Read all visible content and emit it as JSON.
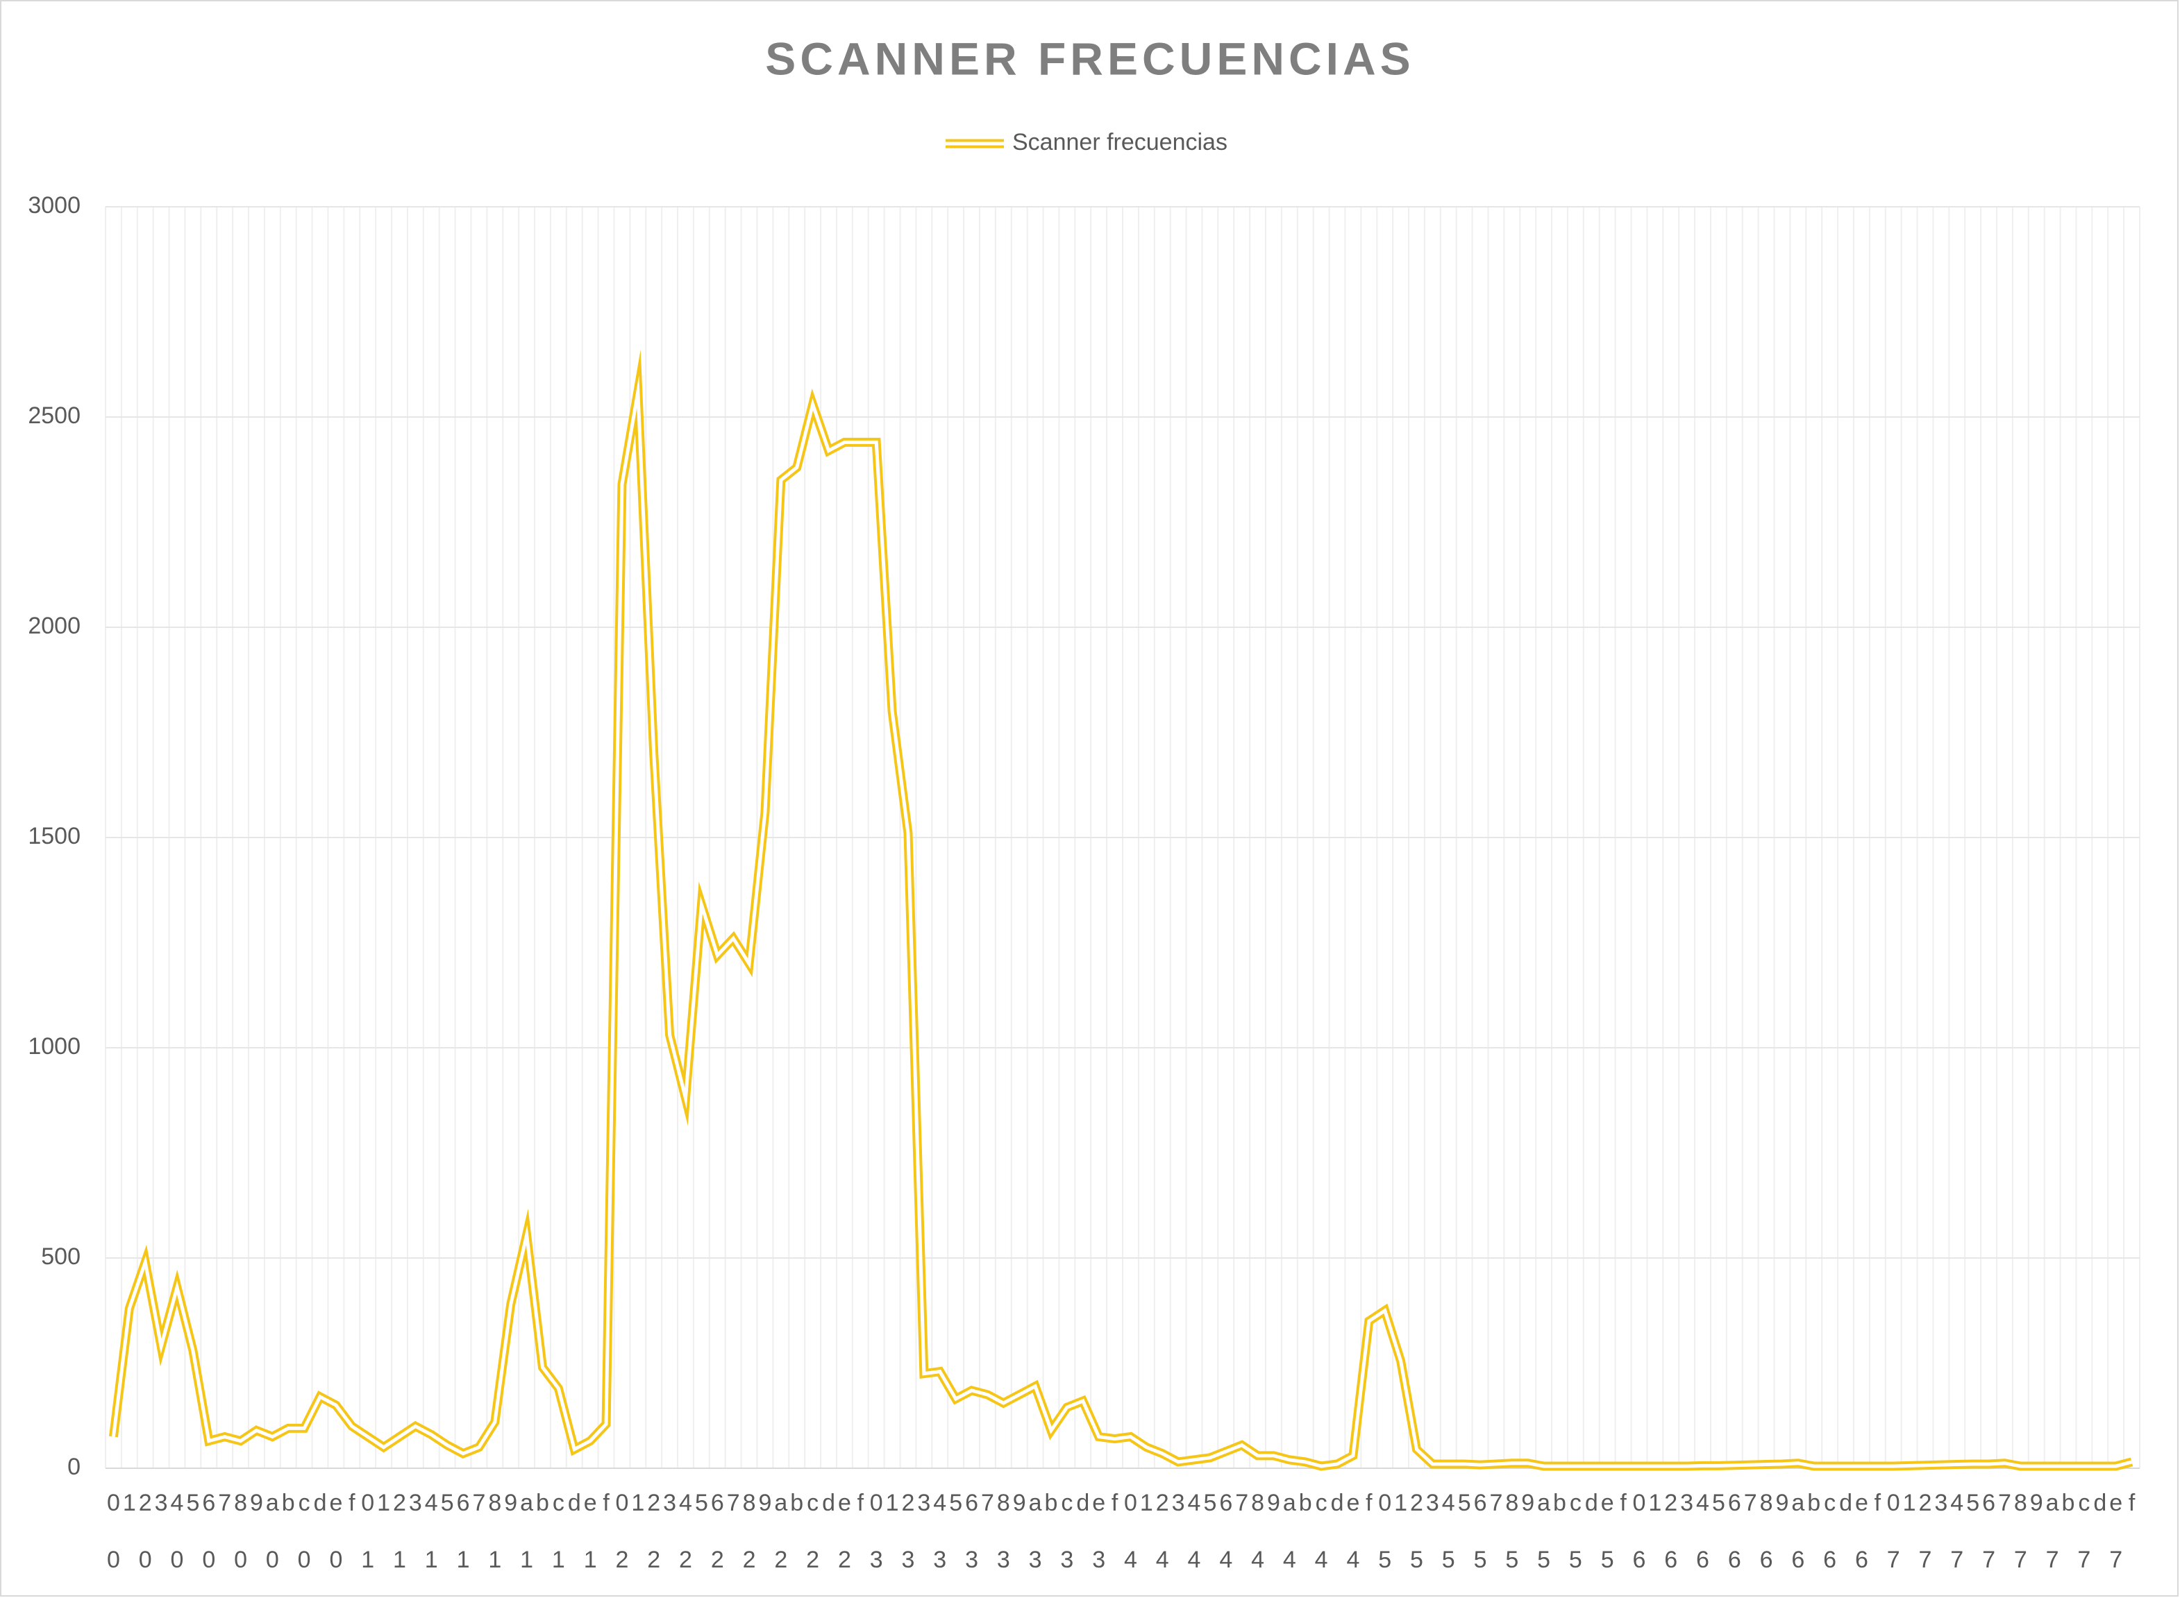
{
  "chart_data": {
    "type": "line",
    "title": "SCANNER FRECUENCIAS",
    "categories": [
      "0",
      "1",
      "2",
      "3",
      "4",
      "5",
      "6",
      "7",
      "8",
      "9",
      "a",
      "b",
      "c",
      "d",
      "e",
      "f",
      "0",
      "1",
      "2",
      "3",
      "4",
      "5",
      "6",
      "7",
      "8",
      "9",
      "a",
      "b",
      "c",
      "d",
      "e",
      "f",
      "0",
      "1",
      "2",
      "3",
      "4",
      "5",
      "6",
      "7",
      "8",
      "9",
      "a",
      "b",
      "c",
      "d",
      "e",
      "f",
      "0",
      "1",
      "2",
      "3",
      "4",
      "5",
      "6",
      "7",
      "8",
      "9",
      "a",
      "b",
      "c",
      "d",
      "e",
      "f",
      "0",
      "1",
      "2",
      "3",
      "4",
      "5",
      "6",
      "7",
      "8",
      "9",
      "a",
      "b",
      "c",
      "d",
      "e",
      "f",
      "0",
      "1",
      "2",
      "3",
      "4",
      "5",
      "6",
      "7",
      "8",
      "9",
      "a",
      "b",
      "c",
      "d",
      "e",
      "f",
      "0",
      "1",
      "2",
      "3",
      "4",
      "5",
      "6",
      "7",
      "8",
      "9",
      "a",
      "b",
      "c",
      "d",
      "e",
      "f",
      "0",
      "1",
      "2",
      "3",
      "4",
      "5",
      "6",
      "7",
      "8",
      "9",
      "a",
      "b",
      "c",
      "d",
      "e",
      "f"
    ],
    "category_groups": [
      "0",
      null,
      "0",
      null,
      "0",
      null,
      "0",
      null,
      "0",
      null,
      "0",
      null,
      "0",
      null,
      "0",
      null,
      "1",
      null,
      "1",
      null,
      "1",
      null,
      "1",
      null,
      "1",
      null,
      "1",
      null,
      "1",
      null,
      "1",
      null,
      "2",
      null,
      "2",
      null,
      "2",
      null,
      "2",
      null,
      "2",
      null,
      "2",
      null,
      "2",
      null,
      "2",
      null,
      "3",
      null,
      "3",
      null,
      "3",
      null,
      "3",
      null,
      "3",
      null,
      "3",
      null,
      "3",
      null,
      "3",
      null,
      "4",
      null,
      "4",
      null,
      "4",
      null,
      "4",
      null,
      "4",
      null,
      "4",
      null,
      "4",
      null,
      "4",
      null,
      "5",
      null,
      "5",
      null,
      "5",
      null,
      "5",
      null,
      "5",
      null,
      "5",
      null,
      "5",
      null,
      "5",
      null,
      "6",
      null,
      "6",
      null,
      "6",
      null,
      "6",
      null,
      "6",
      null,
      "6",
      null,
      "6",
      null,
      "6",
      null,
      "7",
      null,
      "7",
      null,
      "7",
      null,
      "7",
      null,
      "7",
      null,
      "7",
      null,
      "7",
      null,
      "7",
      null
    ],
    "series": [
      {
        "name": "Scanner frecuencias",
        "color": "#f5c518",
        "values": [
          75,
          380,
          490,
          290,
          430,
          280,
          65,
          75,
          65,
          90,
          75,
          95,
          95,
          170,
          150,
          100,
          75,
          50,
          75,
          100,
          80,
          55,
          35,
          50,
          110,
          390,
          555,
          240,
          190,
          45,
          65,
          105,
          2340,
          2560,
          1700,
          1030,
          880,
          1340,
          1220,
          1260,
          1200,
          1560,
          2350,
          2380,
          2530,
          2420,
          2440,
          2440,
          2440,
          1800,
          1510,
          225,
          230,
          165,
          185,
          175,
          155,
          175,
          195,
          90,
          145,
          160,
          75,
          70,
          75,
          50,
          35,
          15,
          20,
          25,
          40,
          55,
          30,
          30,
          20,
          15,
          5,
          10,
          30,
          350,
          375,
          255,
          45,
          10,
          10,
          10,
          8,
          10,
          12,
          12,
          5,
          5,
          5,
          5,
          5,
          5,
          5,
          5,
          5,
          5,
          6,
          6,
          7,
          8,
          9,
          10,
          12,
          5,
          5,
          5,
          5,
          5,
          5,
          6,
          7,
          8,
          9,
          10,
          10,
          12,
          5,
          5,
          5,
          5,
          5,
          5,
          5,
          15
        ]
      }
    ],
    "ylim": [
      0,
      3000
    ],
    "yticks": [
      0,
      500,
      1000,
      1500,
      2000,
      2500,
      3000
    ],
    "grid": true
  }
}
